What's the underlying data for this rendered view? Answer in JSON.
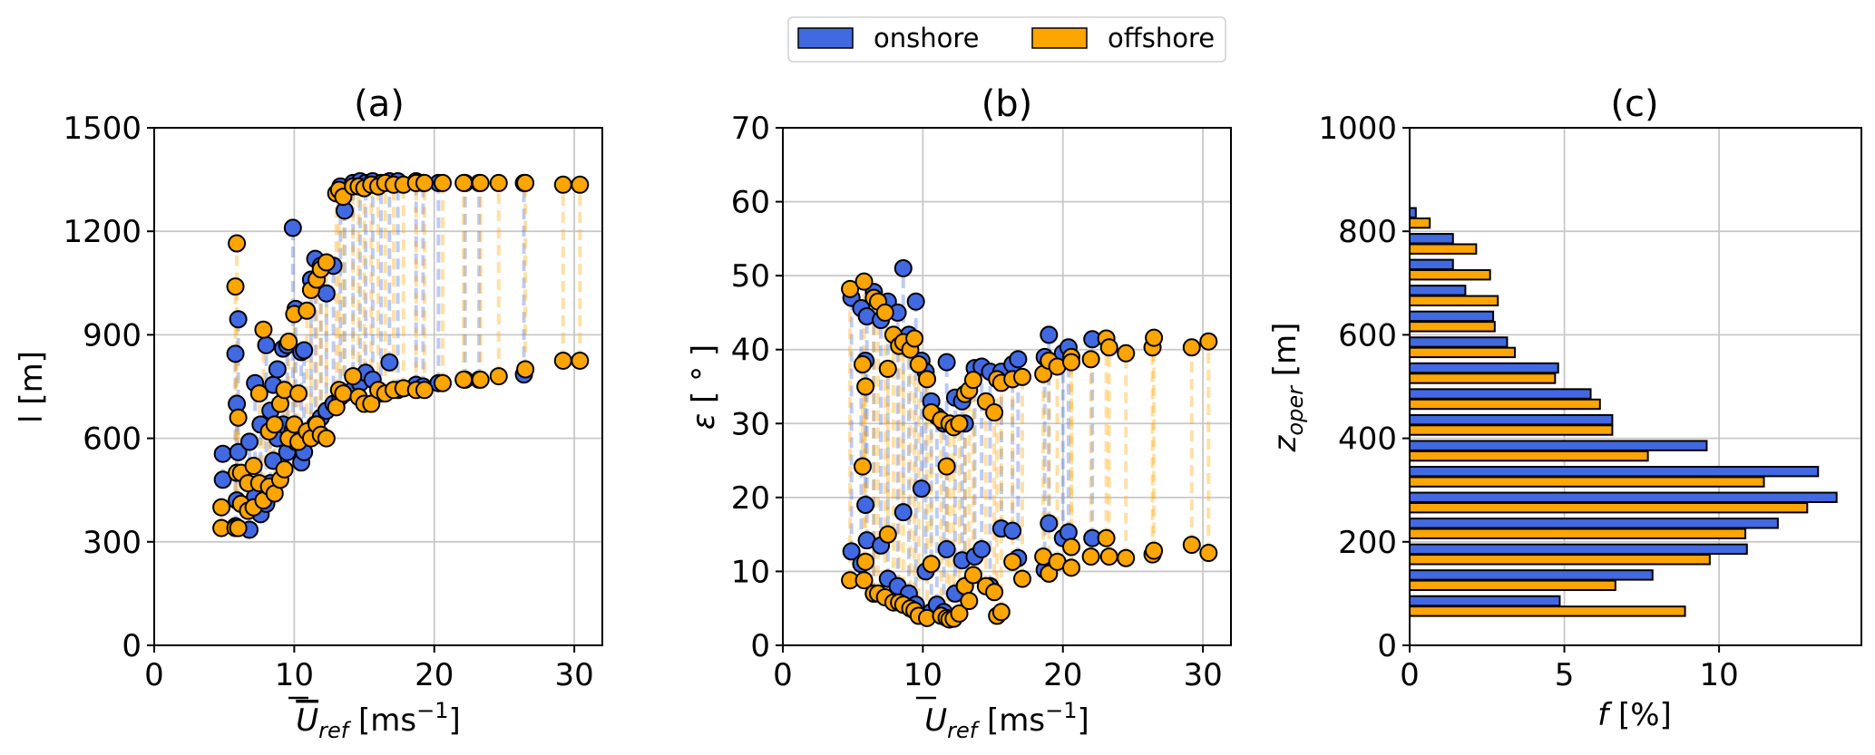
{
  "legend": {
    "placement": "top-center",
    "entries": [
      {
        "label": "onshore",
        "color": "#4169e1"
      },
      {
        "label": "offshore",
        "color": "#ffa500"
      }
    ]
  },
  "colors": {
    "onshore": "#4169e1",
    "offshore": "#ffa500",
    "edge": "#000000",
    "grid": "#c8c8c8"
  },
  "chart_data": [
    {
      "type": "scatter",
      "title": "(a)",
      "xlabel": "U_ref [ms^-1]",
      "xlabel_parts": {
        "symbol": "U",
        "sub": "ref",
        "unit_open": " [ms",
        "sup": "−1",
        "unit_close": "]"
      },
      "ylabel": "l [m]",
      "xlim": [
        0,
        32
      ],
      "ylim": [
        0,
        1500
      ],
      "xticks": [
        0,
        10,
        20,
        30
      ],
      "xtick_labels": [
        "0",
        "10",
        "20",
        "30"
      ],
      "yticks": [
        0,
        300,
        600,
        900,
        1200,
        1500
      ],
      "ytick_labels": [
        "0",
        "300",
        "600",
        "900",
        "1200",
        "1500"
      ],
      "grid": true,
      "note": "each point pair (upper/lower) at same U is joined by a dashed vertical line",
      "series": [
        {
          "name": "onshore",
          "pairs": [
            [
              4.9,
              480,
              555
            ],
            [
              5.8,
              345,
              845
            ],
            [
              5.9,
              420,
              700
            ],
            [
              6.0,
              560,
              945
            ],
            [
              6.8,
              335,
              590
            ],
            [
              7.2,
              430,
              760
            ],
            [
              7.6,
              380,
              640
            ],
            [
              8.0,
              410,
              870
            ],
            [
              8.3,
              470,
              680
            ],
            [
              8.5,
              535,
              755
            ],
            [
              8.8,
              600,
              800
            ],
            [
              9.2,
              640,
              860
            ],
            [
              9.5,
              560,
              870
            ],
            [
              9.9,
              625,
              1210
            ],
            [
              10.1,
              590,
              975
            ],
            [
              10.5,
              530,
              850
            ],
            [
              10.7,
              560,
              855
            ],
            [
              11.2,
              620,
              1060
            ],
            [
              11.5,
              640,
              1120
            ],
            [
              11.9,
              660,
              1100
            ],
            [
              12.3,
              680,
              1020
            ],
            [
              12.8,
              700,
              1100
            ],
            [
              13.3,
              720,
              1330
            ],
            [
              13.6,
              730,
              1260
            ],
            [
              14.2,
              740,
              1340
            ],
            [
              14.7,
              760,
              1345
            ],
            [
              15.1,
              790,
              1340
            ],
            [
              15.6,
              770,
              1345
            ],
            [
              16.2,
              730,
              1340
            ],
            [
              16.8,
              820,
              1345
            ],
            [
              17.4,
              740,
              1345
            ],
            [
              18.7,
              755,
              1345
            ],
            [
              19.2,
              750,
              1340
            ],
            [
              20.3,
              760,
              1340
            ],
            [
              22.2,
              770,
              1340
            ],
            [
              23.2,
              770,
              1340
            ],
            [
              26.4,
              785,
              1340
            ]
          ]
        },
        {
          "name": "offshore",
          "pairs": [
            [
              4.8,
              340,
              400
            ],
            [
              5.8,
              340,
              1040
            ],
            [
              5.9,
              500,
              1165
            ],
            [
              6.0,
              340,
              660
            ],
            [
              6.2,
              410,
              500
            ],
            [
              6.7,
              390,
              470
            ],
            [
              7.1,
              400,
              520
            ],
            [
              7.5,
              470,
              730
            ],
            [
              7.8,
              420,
              915
            ],
            [
              8.2,
              460,
              620
            ],
            [
              8.6,
              440,
              640
            ],
            [
              9.0,
              480,
              700
            ],
            [
              9.3,
              510,
              740
            ],
            [
              9.6,
              600,
              880
            ],
            [
              10.0,
              640,
              960
            ],
            [
              10.3,
              590,
              730
            ],
            [
              10.9,
              620,
              970
            ],
            [
              11.2,
              600,
              1030
            ],
            [
              11.6,
              640,
              1060
            ],
            [
              11.9,
              610,
              1090
            ],
            [
              12.3,
              600,
              1110
            ],
            [
              13.0,
              690,
              1310
            ],
            [
              13.2,
              740,
              1320
            ],
            [
              13.5,
              730,
              1300
            ],
            [
              14.2,
              780,
              1330
            ],
            [
              14.6,
              720,
              1330
            ],
            [
              15.0,
              700,
              1325
            ],
            [
              15.5,
              700,
              1335
            ],
            [
              16.0,
              740,
              1330
            ],
            [
              16.5,
              730,
              1340
            ],
            [
              17.1,
              740,
              1335
            ],
            [
              17.8,
              745,
              1335
            ],
            [
              18.7,
              740,
              1340
            ],
            [
              19.3,
              740,
              1340
            ],
            [
              20.6,
              760,
              1340
            ],
            [
              22.1,
              770,
              1340
            ],
            [
              23.3,
              770,
              1340
            ],
            [
              24.6,
              780,
              1340
            ],
            [
              26.5,
              800,
              1340
            ],
            [
              29.2,
              825,
              1335
            ],
            [
              30.4,
              825,
              1335
            ]
          ]
        }
      ]
    },
    {
      "type": "scatter",
      "title": "(b)",
      "xlabel": "U_ref [ms^-1]",
      "xlabel_parts": {
        "symbol": "U",
        "sub": "ref",
        "unit_open": " [ms",
        "sup": "−1",
        "unit_close": "]"
      },
      "ylabel": "ε [°]",
      "ylabel_parts": {
        "symbol": "ε",
        "unit": " [ ° ]"
      },
      "xlim": [
        0,
        32
      ],
      "ylim": [
        0,
        70
      ],
      "xticks": [
        0,
        10,
        20,
        30
      ],
      "xtick_labels": [
        "0",
        "10",
        "20",
        "30"
      ],
      "yticks": [
        0,
        10,
        20,
        30,
        40,
        50,
        60,
        70
      ],
      "ytick_labels": [
        "0",
        "10",
        "20",
        "30",
        "40",
        "50",
        "60",
        "70"
      ],
      "grid": true,
      "note": "each point pair (upper/lower) at same U is joined by a dashed vertical line",
      "series": [
        {
          "name": "onshore",
          "pairs": [
            [
              4.9,
              12.7,
              47.0
            ],
            [
              5.6,
              11.0,
              45.6
            ],
            [
              5.9,
              19.0,
              38.5
            ],
            [
              6.0,
              14.2,
              44.5
            ],
            [
              6.5,
              7.0,
              47.8
            ],
            [
              7.0,
              13.5,
              44.0
            ],
            [
              7.5,
              9.0,
              46.5
            ],
            [
              8.2,
              8.0,
              45.0
            ],
            [
              8.6,
              18.0,
              51.0
            ],
            [
              9.0,
              7.0,
              42.0
            ],
            [
              9.5,
              5.5,
              46.5
            ],
            [
              9.9,
              21.2,
              38.5
            ],
            [
              10.2,
              10.0,
              37.0
            ],
            [
              10.6,
              4.5,
              33.0
            ],
            [
              11.0,
              5.5,
              31.0
            ],
            [
              11.5,
              4.5,
              30.0
            ],
            [
              11.7,
              13.0,
              38.3
            ],
            [
              12.3,
              7.0,
              33.5
            ],
            [
              12.8,
              11.5,
              33.0
            ],
            [
              13.0,
              8.0,
              30.0
            ],
            [
              13.7,
              12.0,
              37.5
            ],
            [
              14.2,
              13.0,
              37.7
            ],
            [
              14.8,
              8.0,
              37.0
            ],
            [
              15.6,
              15.8,
              37.0
            ],
            [
              16.4,
              15.5,
              38.0
            ],
            [
              16.8,
              11.8,
              38.7
            ],
            [
              18.7,
              10.2,
              39.0
            ],
            [
              19.0,
              16.5,
              42.0
            ],
            [
              20.0,
              14.5,
              39.5
            ],
            [
              20.4,
              15.3,
              40.3
            ],
            [
              22.1,
              14.5,
              41.4
            ]
          ]
        },
        {
          "name": "offshore",
          "pairs": [
            [
              4.8,
              8.8,
              48.2
            ],
            [
              5.7,
              24.2,
              38.0
            ],
            [
              5.8,
              8.8,
              49.2
            ],
            [
              5.9,
              11.3,
              35.0
            ],
            [
              6.5,
              7.0,
              47.0
            ],
            [
              6.8,
              7.0,
              46.5
            ],
            [
              7.3,
              6.5,
              45.0
            ],
            [
              7.5,
              15.0,
              37.4
            ],
            [
              7.9,
              5.8,
              42.0
            ],
            [
              8.3,
              5.8,
              40.5
            ],
            [
              8.6,
              5.5,
              41.0
            ],
            [
              9.1,
              5.0,
              40.0
            ],
            [
              9.4,
              4.7,
              41.5
            ],
            [
              9.7,
              4.0,
              38.0
            ],
            [
              10.3,
              3.7,
              36.0
            ],
            [
              10.6,
              11.0,
              31.5
            ],
            [
              11.3,
              4.0,
              30.5
            ],
            [
              11.7,
              3.7,
              24.2
            ],
            [
              11.9,
              3.5,
              30.0
            ],
            [
              12.2,
              3.6,
              29.5
            ],
            [
              12.6,
              4.3,
              30.0
            ],
            [
              13.0,
              8.0,
              34.0
            ],
            [
              13.3,
              6.0,
              34.5
            ],
            [
              13.6,
              9.5,
              35.9
            ],
            [
              14.5,
              8.0,
              33.0
            ],
            [
              15.1,
              7.2,
              31.5
            ],
            [
              15.3,
              4.0,
              36.0
            ],
            [
              15.6,
              4.5,
              35.5
            ],
            [
              16.4,
              11.3,
              36.0
            ],
            [
              17.1,
              9.0,
              36.3
            ],
            [
              18.6,
              12.0,
              36.7
            ],
            [
              19.0,
              9.7,
              38.5
            ],
            [
              19.6,
              11.3,
              37.7
            ],
            [
              20.6,
              10.5,
              39.0
            ],
            [
              20.6,
              13.3,
              38.3
            ],
            [
              22.0,
              12.0,
              38.7
            ],
            [
              23.1,
              14.5,
              41.5
            ],
            [
              23.3,
              12.0,
              40.3
            ],
            [
              24.5,
              11.8,
              39.5
            ],
            [
              26.4,
              12.3,
              40.3
            ],
            [
              26.5,
              12.8,
              41.6
            ],
            [
              29.2,
              13.6,
              40.3
            ],
            [
              30.4,
              12.5,
              41.1
            ]
          ]
        }
      ]
    },
    {
      "type": "bar",
      "orientation": "horizontal",
      "title": "(c)",
      "xlabel": "f [%]",
      "ylabel": "z_oper [m]",
      "ylabel_parts": {
        "symbol": "z",
        "sub": "oper",
        "unit": " [m]"
      },
      "xlim": [
        0,
        14.6
      ],
      "ylim": [
        0,
        1000
      ],
      "xticks": [
        0,
        5,
        10
      ],
      "xtick_labels": [
        "0",
        "5",
        "10"
      ],
      "yticks": [
        0,
        200,
        400,
        600,
        800,
        1000
      ],
      "ytick_labels": [
        "0",
        "200",
        "400",
        "600",
        "800",
        "1000"
      ],
      "grid": true,
      "categories": [
        75,
        125,
        175,
        225,
        275,
        325,
        375,
        425,
        475,
        525,
        575,
        625,
        675,
        725,
        775,
        825
      ],
      "series": [
        {
          "name": "onshore",
          "values": [
            4.85,
            7.85,
            10.9,
            11.9,
            13.8,
            13.2,
            9.6,
            6.55,
            5.85,
            4.8,
            3.15,
            2.7,
            1.8,
            1.4,
            1.4,
            0.2
          ]
        },
        {
          "name": "offshore",
          "values": [
            8.9,
            6.65,
            9.7,
            10.85,
            12.85,
            11.45,
            7.7,
            6.55,
            6.15,
            4.7,
            3.4,
            2.75,
            2.85,
            2.6,
            2.15,
            0.65
          ]
        }
      ]
    }
  ]
}
